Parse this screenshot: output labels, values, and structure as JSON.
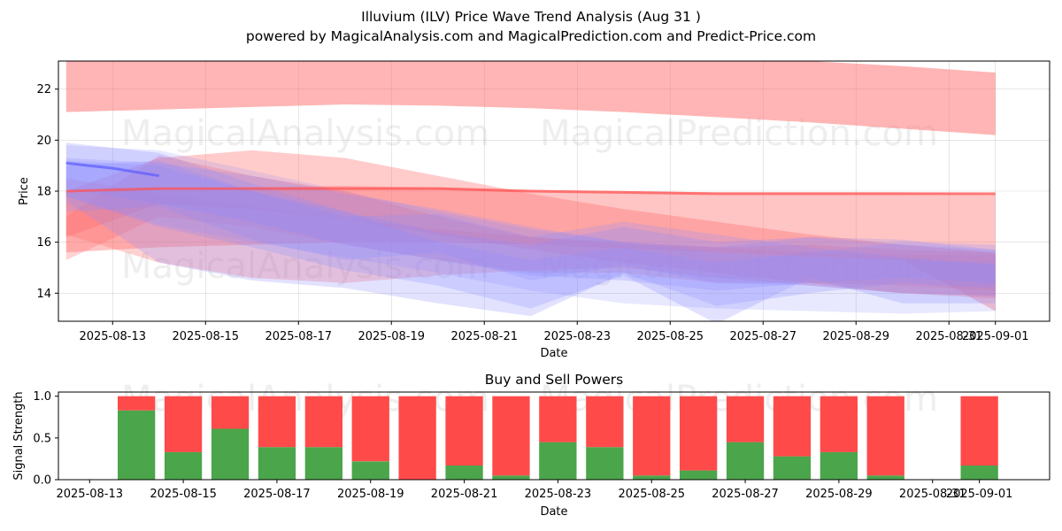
{
  "header": {
    "title": "Illuvium (ILV) Price Wave Trend Analysis (Aug 31 )",
    "subtitle": "powered by MagicalAnalysis.com and MagicalPrediction.com and Predict-Price.com"
  },
  "watermarks": [
    "MagicalAnalysis.com",
    "MagicalPrediction.com"
  ],
  "colors": {
    "sell": "#ff4a4a",
    "buy": "#4ba54b",
    "bear_band": "#ff6b6b",
    "bull_band": "#8c8cff",
    "blue_line": "#5a5aff"
  },
  "chart_data": [
    {
      "type": "area",
      "title": "",
      "xlabel": "Date",
      "ylabel": "Price",
      "xlim": [
        "2025-08-11 20:00",
        "2025-09-02 04:00"
      ],
      "ylim": [
        12.9,
        23.1
      ],
      "yticks": [
        14,
        16,
        18,
        20,
        22
      ],
      "xticks": [
        "2025-08-13",
        "2025-08-15",
        "2025-08-17",
        "2025-08-19",
        "2025-08-21",
        "2025-08-23",
        "2025-08-25",
        "2025-08-27",
        "2025-08-29",
        "2025-08-31",
        "2025-09-01"
      ],
      "grid": true,
      "series": [
        {
          "color": "red",
          "alpha": 0.5,
          "x": [
            "2025-08-12",
            "2025-08-14",
            "2025-08-16",
            "2025-08-18",
            "2025-08-20",
            "2025-08-22",
            "2025-08-24",
            "2025-08-26",
            "2025-08-28",
            "2025-08-30",
            "2025-09-01"
          ],
          "upper": [
            23.1,
            23.1,
            23.1,
            23.1,
            23.1,
            23.1,
            23.1,
            23.1,
            23.1,
            22.9,
            22.65
          ],
          "lower": [
            21.1,
            21.2,
            21.3,
            21.4,
            21.35,
            21.25,
            21.1,
            20.9,
            20.7,
            20.45,
            20.2
          ]
        },
        {
          "color": "red",
          "alpha": 0.4,
          "x": [
            "2025-08-12",
            "2025-08-14",
            "2025-08-16",
            "2025-08-18",
            "2025-08-20",
            "2025-08-22",
            "2025-08-24",
            "2025-08-26",
            "2025-08-28",
            "2025-08-30",
            "2025-09-01"
          ],
          "upper": [
            18.0,
            18.1,
            18.15,
            18.2,
            18.15,
            18.05,
            18.0,
            17.95,
            17.95,
            17.95,
            17.9
          ],
          "lower": [
            15.6,
            15.8,
            15.9,
            16.0,
            16.0,
            15.9,
            15.75,
            15.6,
            15.45,
            15.3,
            13.3
          ]
        },
        {
          "color": "red",
          "alpha": 0.35,
          "x": [
            "2025-08-12",
            "2025-08-14",
            "2025-08-16",
            "2025-08-18",
            "2025-08-20",
            "2025-08-22",
            "2025-08-24",
            "2025-08-26",
            "2025-08-28",
            "2025-08-30",
            "2025-09-01"
          ],
          "upper": [
            18.0,
            19.3,
            19.6,
            19.3,
            18.6,
            17.9,
            17.3,
            16.8,
            16.3,
            15.9,
            15.6
          ],
          "lower": [
            16.2,
            17.5,
            17.3,
            16.9,
            16.3,
            15.7,
            15.2,
            14.8,
            14.4,
            14.0,
            13.8
          ]
        },
        {
          "color": "red",
          "alpha": 0.3,
          "x": [
            "2025-08-12",
            "2025-08-14",
            "2025-08-16",
            "2025-08-18",
            "2025-08-20",
            "2025-08-22",
            "2025-08-24",
            "2025-08-26",
            "2025-08-28",
            "2025-08-30",
            "2025-09-01"
          ],
          "upper": [
            18.5,
            17.9,
            17.4,
            16.9,
            16.5,
            16.2,
            15.9,
            15.8,
            15.6,
            15.5,
            15.5
          ],
          "lower": [
            16.3,
            15.2,
            14.6,
            14.4,
            14.7,
            14.9,
            15.0,
            14.6,
            14.3,
            14.0,
            13.9
          ]
        },
        {
          "color": "red",
          "alpha": 0.3,
          "x": [
            "2025-08-12",
            "2025-08-14",
            "2025-08-16",
            "2025-08-18",
            "2025-08-20",
            "2025-08-22",
            "2025-08-24",
            "2025-08-26",
            "2025-08-28",
            "2025-08-30",
            "2025-09-01"
          ],
          "upper": [
            17.0,
            19.4,
            18.6,
            18.0,
            17.0,
            16.2,
            16.0,
            15.8,
            15.9,
            15.7,
            15.6
          ],
          "lower": [
            15.3,
            17.0,
            16.6,
            15.9,
            15.3,
            14.8,
            14.8,
            14.4,
            14.4,
            14.3,
            14.1
          ]
        },
        {
          "color": "blue",
          "alpha": 0.25,
          "x": [
            "2025-08-12",
            "2025-08-14",
            "2025-08-16",
            "2025-08-18",
            "2025-08-20",
            "2025-08-22",
            "2025-08-24",
            "2025-08-26",
            "2025-08-28",
            "2025-08-30",
            "2025-09-01"
          ],
          "upper": [
            19.9,
            19.5,
            18.3,
            17.2,
            16.0,
            15.3,
            15.8,
            15.2,
            15.6,
            16.0,
            15.9
          ],
          "lower": [
            17.6,
            15.2,
            14.5,
            14.2,
            13.6,
            13.1,
            14.8,
            13.5,
            14.0,
            14.4,
            14.2
          ]
        },
        {
          "color": "blue",
          "alpha": 0.25,
          "x": [
            "2025-08-12",
            "2025-08-14",
            "2025-08-16",
            "2025-08-18",
            "2025-08-20",
            "2025-08-22",
            "2025-08-24",
            "2025-08-26",
            "2025-08-28",
            "2025-08-30",
            "2025-09-01"
          ],
          "upper": [
            19.2,
            19.0,
            18.0,
            17.2,
            16.4,
            15.9,
            16.6,
            16.0,
            16.2,
            15.9,
            15.7
          ],
          "lower": [
            17.8,
            16.6,
            15.8,
            14.9,
            14.3,
            13.4,
            14.7,
            12.8,
            14.6,
            13.6,
            13.6
          ]
        },
        {
          "color": "blue",
          "alpha": 0.25,
          "x": [
            "2025-08-12",
            "2025-08-14",
            "2025-08-16",
            "2025-08-18",
            "2025-08-20",
            "2025-08-22",
            "2025-08-24",
            "2025-08-26",
            "2025-08-28",
            "2025-08-30",
            "2025-09-01"
          ],
          "upper": [
            19.3,
            19.1,
            18.6,
            17.9,
            17.3,
            16.6,
            16.0,
            15.8,
            16.2,
            16.1,
            15.7
          ],
          "lower": [
            18.1,
            17.5,
            16.8,
            15.9,
            15.3,
            14.7,
            14.5,
            14.1,
            14.4,
            14.6,
            14.4
          ]
        },
        {
          "color": "blue",
          "alpha": 0.2,
          "x": [
            "2025-08-12",
            "2025-08-14",
            "2025-08-16",
            "2025-08-18",
            "2025-08-20",
            "2025-08-22",
            "2025-08-24",
            "2025-08-26",
            "2025-08-28",
            "2025-08-30",
            "2025-09-01"
          ],
          "upper": [
            19.8,
            19.6,
            18.8,
            18.0,
            17.2,
            16.5,
            16.0,
            15.6,
            15.4,
            15.3,
            15.2
          ],
          "lower": [
            17.8,
            16.7,
            16.0,
            15.4,
            14.8,
            14.1,
            13.6,
            13.4,
            13.3,
            13.2,
            13.3
          ]
        },
        {
          "color": "blue",
          "alpha": 0.25,
          "x": [
            "2025-08-12",
            "2025-08-14",
            "2025-08-16",
            "2025-08-18",
            "2025-08-20",
            "2025-08-22",
            "2025-08-24",
            "2025-08-26",
            "2025-08-28",
            "2025-08-30",
            "2025-09-01"
          ],
          "upper": [
            19.0,
            19.2,
            18.0,
            17.0,
            17.1,
            16.2,
            16.8,
            16.3,
            15.8,
            15.4,
            15.1
          ],
          "lower": [
            17.2,
            17.4,
            16.1,
            15.3,
            15.6,
            14.5,
            15.1,
            14.4,
            14.3,
            14.0,
            13.9
          ]
        }
      ],
      "lines": [
        {
          "color": "red",
          "x": [
            "2025-08-12",
            "2025-08-14",
            "2025-08-16",
            "2025-08-18",
            "2025-08-20",
            "2025-08-22",
            "2025-08-24",
            "2025-08-26",
            "2025-08-28",
            "2025-08-30",
            "2025-09-01"
          ],
          "y": [
            18.0,
            18.1,
            18.1,
            18.1,
            18.1,
            18.0,
            17.95,
            17.9,
            17.9,
            17.9,
            17.9
          ]
        },
        {
          "color": "blue",
          "x": [
            "2025-08-12",
            "2025-08-13",
            "2025-08-14"
          ],
          "y": [
            19.1,
            18.9,
            18.6
          ]
        }
      ]
    },
    {
      "type": "bar",
      "title": "Buy and Sell Powers",
      "xlabel": "Date",
      "ylabel": "Signal Strength",
      "ylim": [
        0,
        1.05
      ],
      "yticks": [
        "0.0",
        "0.5",
        "1.0"
      ],
      "xlim": [
        "2025-08-12 08:00",
        "2025-09-02 12:00"
      ],
      "xticks": [
        "2025-08-13",
        "2025-08-15",
        "2025-08-17",
        "2025-08-19",
        "2025-08-21",
        "2025-08-23",
        "2025-08-25",
        "2025-08-27",
        "2025-08-29",
        "2025-08-31",
        "2025-09-01"
      ],
      "grid": false,
      "series": [
        {
          "name": "Buy",
          "color": "green",
          "dates": [
            "2025-08-14",
            "2025-08-15",
            "2025-08-16",
            "2025-08-17",
            "2025-08-18",
            "2025-08-19",
            "2025-08-20",
            "2025-08-21",
            "2025-08-22",
            "2025-08-23",
            "2025-08-24",
            "2025-08-25",
            "2025-08-26",
            "2025-08-27",
            "2025-08-28",
            "2025-08-29",
            "2025-08-30",
            "2025-09-01"
          ],
          "values": [
            0.83,
            0.33,
            0.61,
            0.39,
            0.39,
            0.22,
            0.0,
            0.17,
            0.05,
            0.45,
            0.39,
            0.05,
            0.11,
            0.45,
            0.28,
            0.33,
            0.05,
            0.17
          ]
        },
        {
          "name": "Sell",
          "color": "red",
          "dates": [
            "2025-08-14",
            "2025-08-15",
            "2025-08-16",
            "2025-08-17",
            "2025-08-18",
            "2025-08-19",
            "2025-08-20",
            "2025-08-21",
            "2025-08-22",
            "2025-08-23",
            "2025-08-24",
            "2025-08-25",
            "2025-08-26",
            "2025-08-27",
            "2025-08-28",
            "2025-08-29",
            "2025-08-30",
            "2025-09-01"
          ],
          "values": [
            0.17,
            0.67,
            0.39,
            0.61,
            0.61,
            0.78,
            1.0,
            0.83,
            0.95,
            0.55,
            0.61,
            0.95,
            0.89,
            0.55,
            0.72,
            0.67,
            0.95,
            0.83
          ]
        }
      ]
    }
  ]
}
